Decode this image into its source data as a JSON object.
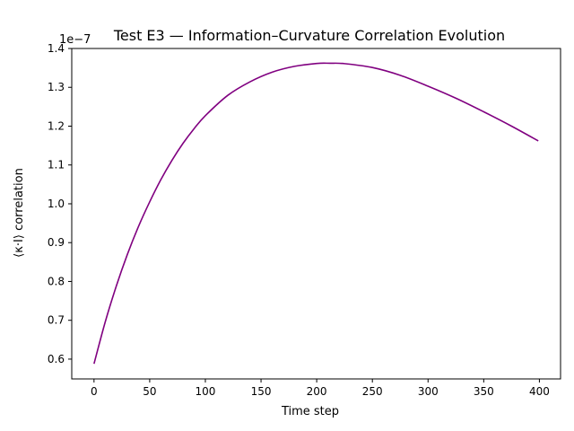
{
  "chart_data": {
    "type": "line",
    "title": "Test E3 — Information–Curvature Correlation Evolution",
    "xlabel": "Time step",
    "ylabel": "⟨κ·I⟩ correlation",
    "offset_label": "1e−7",
    "y_scale": 1e-07,
    "xlim": [
      -20,
      419
    ],
    "ylim": [
      0.549,
      1.4
    ],
    "x_ticks": [
      0,
      50,
      100,
      150,
      200,
      250,
      300,
      350,
      400
    ],
    "x_tick_labels": [
      "0",
      "50",
      "100",
      "150",
      "200",
      "250",
      "300",
      "350",
      "400"
    ],
    "y_ticks": [
      0.6,
      0.7,
      0.8,
      0.9,
      1.0,
      1.1,
      1.2,
      1.3,
      1.4
    ],
    "y_tick_labels": [
      "0.6",
      "0.7",
      "0.8",
      "0.9",
      "1.0",
      "1.1",
      "1.2",
      "1.3",
      "1.4"
    ],
    "grid": false,
    "legend": "none",
    "line_color": "#800080",
    "series": [
      {
        "x": [
          0,
          10,
          20,
          30,
          40,
          50,
          60,
          70,
          80,
          90,
          100,
          120,
          140,
          160,
          180,
          200,
          212,
          225,
          250,
          275,
          300,
          325,
          350,
          375,
          399
        ],
        "y": [
          0.588,
          0.695,
          0.788,
          0.87,
          0.942,
          1.005,
          1.062,
          1.112,
          1.156,
          1.194,
          1.227,
          1.279,
          1.314,
          1.339,
          1.354,
          1.3615,
          1.362,
          1.361,
          1.351,
          1.331,
          1.303,
          1.272,
          1.237,
          1.2,
          1.162
        ]
      }
    ]
  }
}
